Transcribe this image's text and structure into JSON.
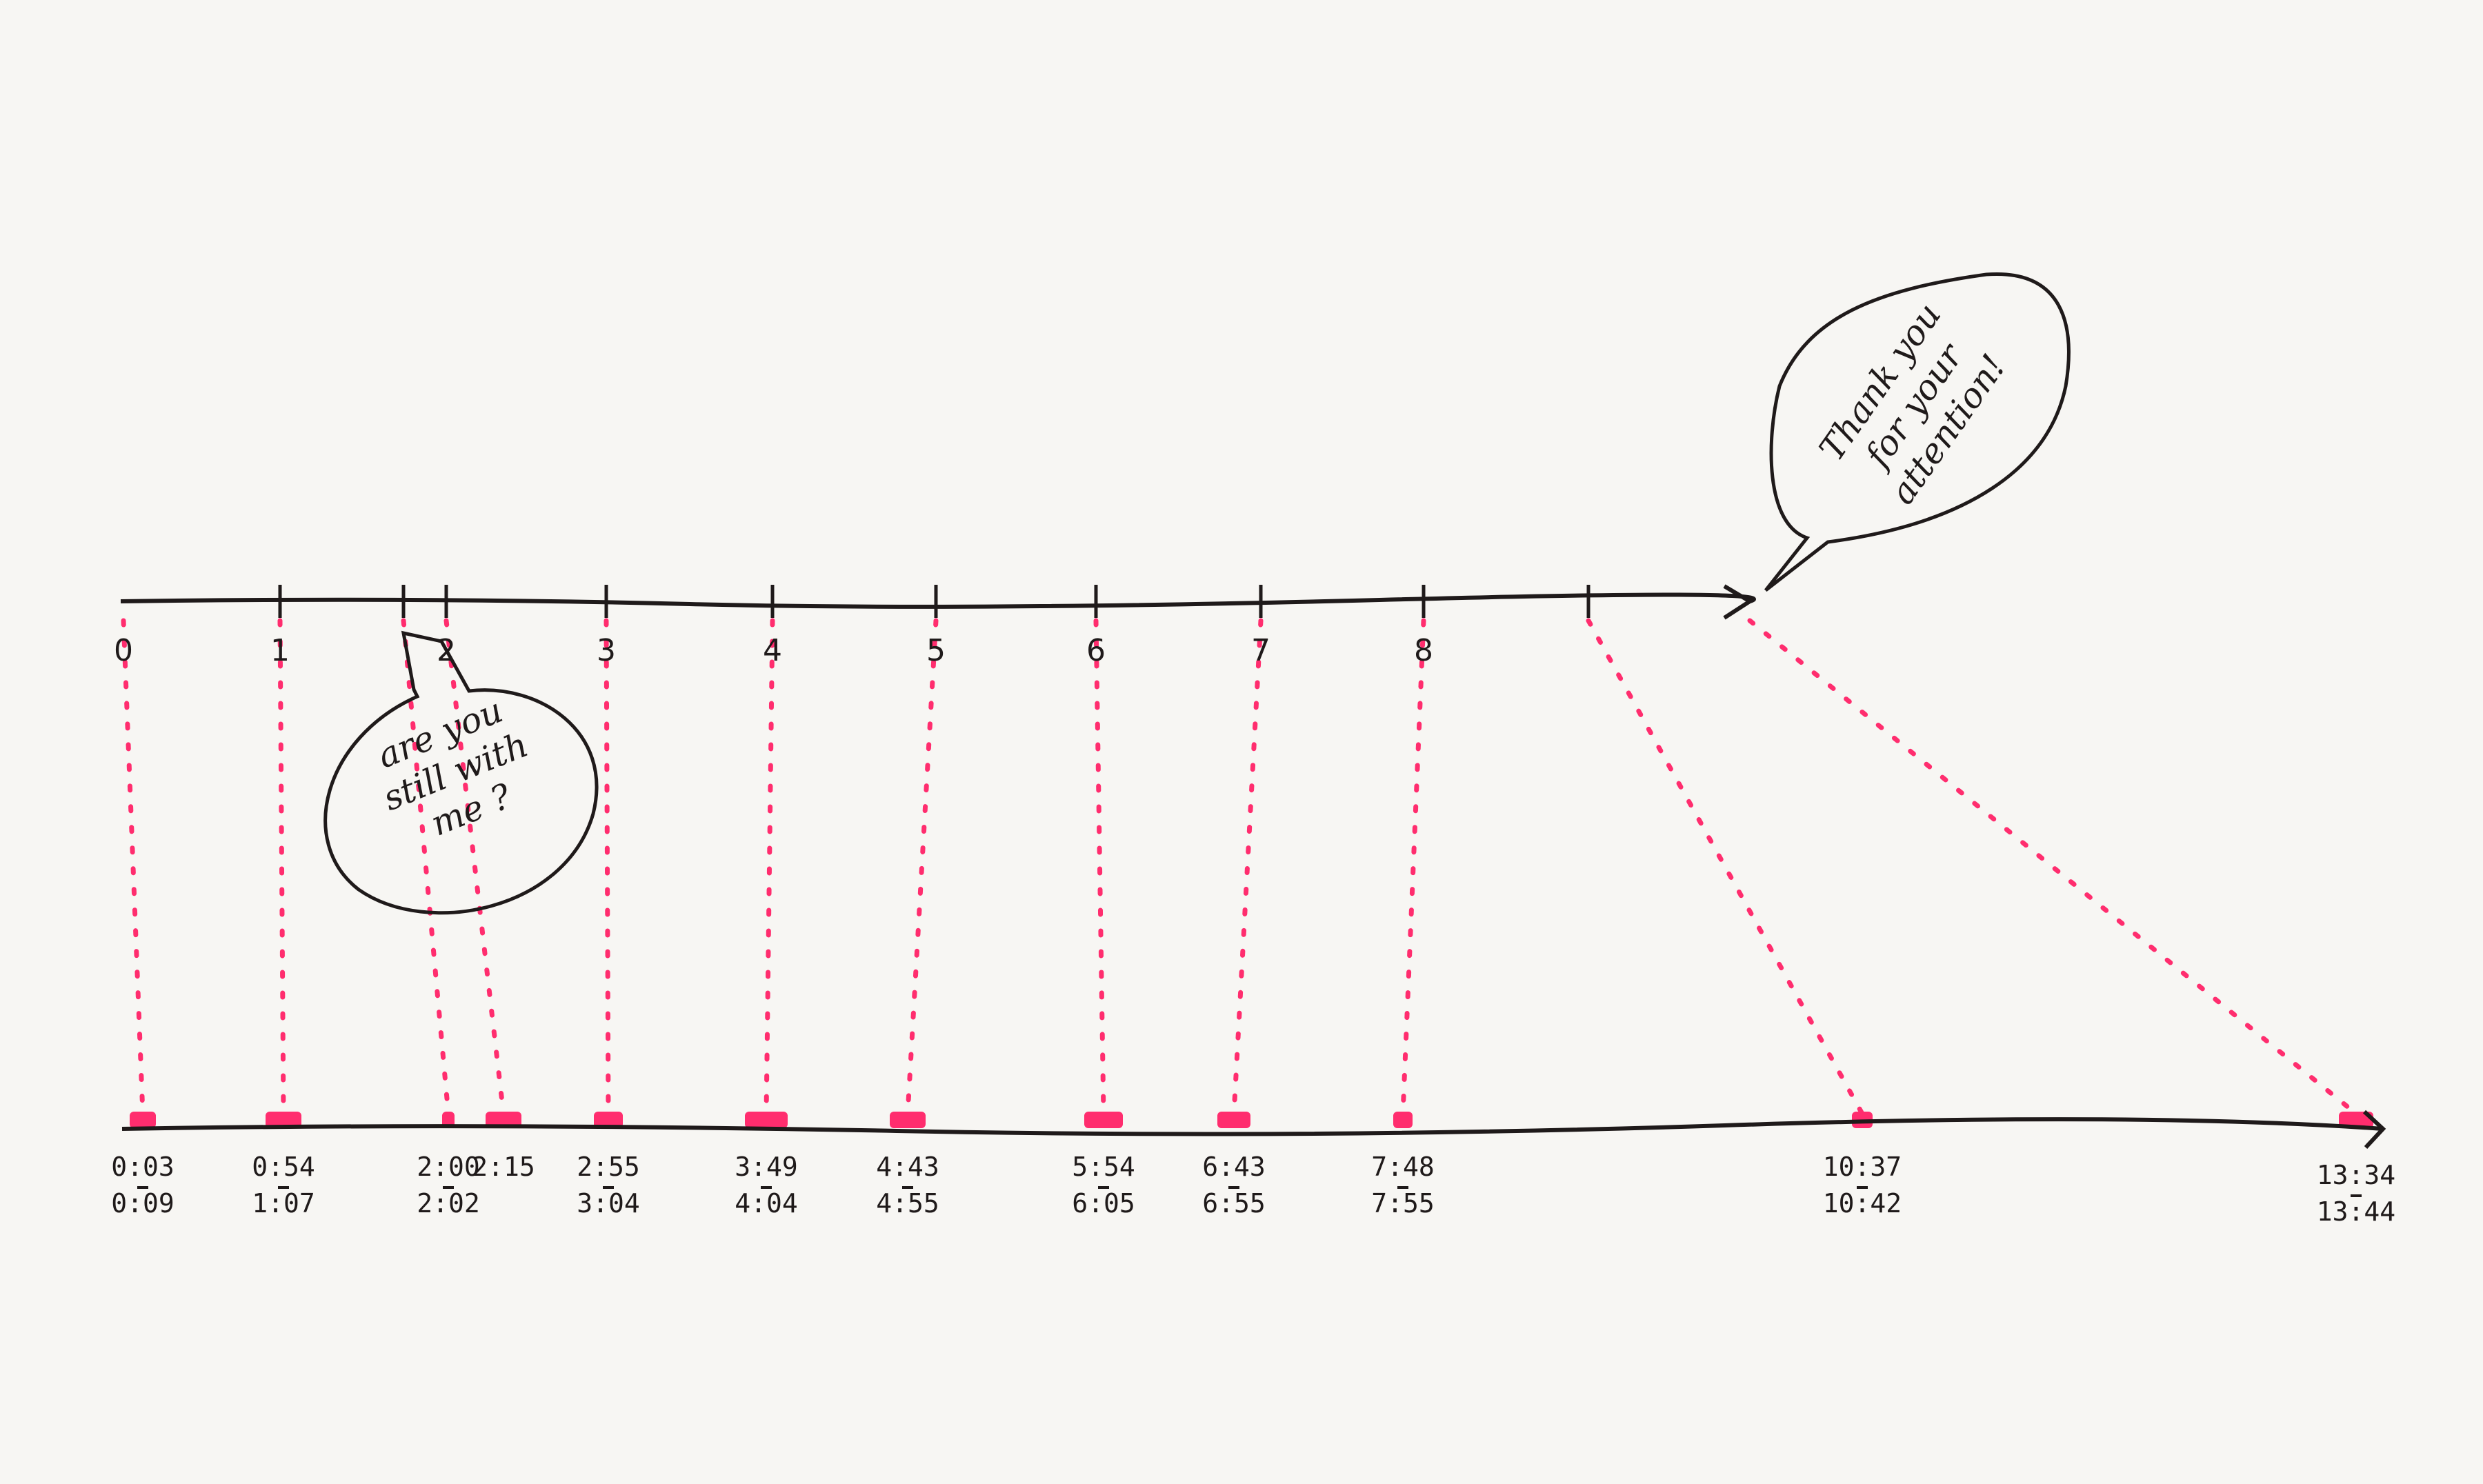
{
  "colors": {
    "ink": "#1f1a1a",
    "highlight": "#ff2d6e",
    "paper": "#f7f6f3"
  },
  "top_axis": {
    "tick_labels": [
      "0",
      "1",
      "",
      "2",
      "3",
      "4",
      "5",
      "6",
      "7",
      "8",
      ""
    ]
  },
  "bottom_axis": {
    "marks": [
      {
        "start": "0:03",
        "end": "0:09"
      },
      {
        "start": "0:54",
        "end": "1:07"
      },
      {
        "start": "2:00",
        "end": "2:02"
      },
      {
        "start": "2:15",
        "end": ""
      },
      {
        "start": "2:55",
        "end": "3:04"
      },
      {
        "start": "3:49",
        "end": "4:04"
      },
      {
        "start": "4:43",
        "end": "4:55"
      },
      {
        "start": "5:54",
        "end": "6:05"
      },
      {
        "start": "6:43",
        "end": "6:55"
      },
      {
        "start": "7:48",
        "end": "7:55"
      },
      {
        "start": "10:37",
        "end": "10:42"
      },
      {
        "start": "13:34",
        "end": "13:44"
      }
    ]
  },
  "bubbles": {
    "still_with_me": [
      "are you",
      "still with",
      "me ?"
    ],
    "thank_you": [
      "Thank you",
      "for your",
      "attention!"
    ]
  }
}
